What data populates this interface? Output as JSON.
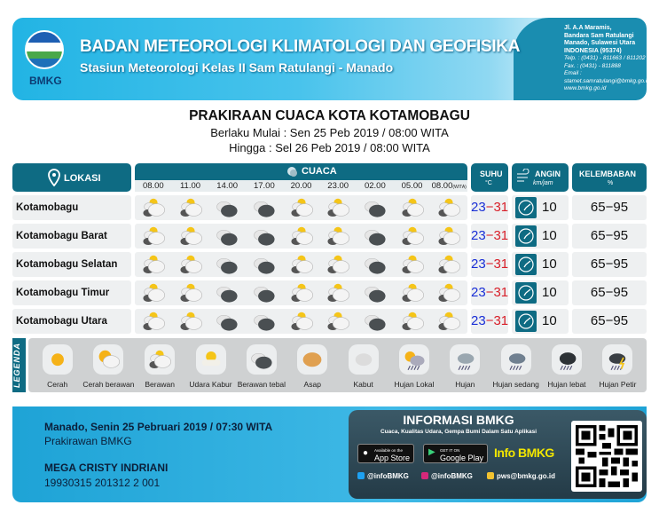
{
  "header": {
    "logo_text": "BMKG",
    "org": "BADAN METEOROLOGI KLIMATOLOGI DAN GEOFISIKA",
    "station": "Stasiun Meteorologi Kelas II Sam Ratulangi - Manado",
    "address": [
      "Jl. A.A Maramis,",
      "Bandara Sam Ratulangi",
      "Manado, Sulawesi Utara",
      "INDONESIA (95374)"
    ],
    "contact": [
      "Telp.   : (0431) - 811663 / 811202",
      "Fax.    : (0431) - 811888",
      "Email :",
      "stamet.samratulangi@bmkg.go.id",
      "www.bmkg.go.id"
    ]
  },
  "title": "PRAKIRAAN CUACA KOTA KOTAMOBAGU",
  "valid_from": "Berlaku Mulai : Sen 25 Peb 2019 / 08:00 WITA",
  "valid_to": "Hingga : Sel 26 Peb 2019 / 08:00 WITA",
  "table": {
    "headers": {
      "lokasi": "LOKASI",
      "cuaca": "CUACA",
      "suhu": "SUHU",
      "suhu_unit": "°C",
      "angin": "ANGIN",
      "angin_unit": "km/jam",
      "kelembaban": "KELEMBABAN",
      "kelembaban_unit": "%"
    },
    "times": [
      "08.00",
      "11.00",
      "14.00",
      "17.00",
      "20.00",
      "23.00",
      "02.00",
      "05.00",
      "08.00"
    ],
    "time_zone": "(WITA)",
    "rows": [
      {
        "lokasi": "Kotamobagu",
        "cuaca": [
          "berawan",
          "berawan",
          "berawan-tebal",
          "berawan-tebal",
          "berawan",
          "berawan",
          "berawan-tebal",
          "berawan",
          "berawan"
        ],
        "tmin": "23",
        "tmax": "31",
        "wind_dir_icon": "compass-icon",
        "wind": "10",
        "humidity": "65−95"
      },
      {
        "lokasi": "Kotamobagu Barat",
        "cuaca": [
          "berawan",
          "berawan",
          "berawan-tebal",
          "berawan-tebal",
          "berawan",
          "berawan",
          "berawan-tebal",
          "berawan",
          "berawan"
        ],
        "tmin": "23",
        "tmax": "31",
        "wind_dir_icon": "compass-icon",
        "wind": "10",
        "humidity": "65−95"
      },
      {
        "lokasi": "Kotamobagu Selatan",
        "cuaca": [
          "berawan",
          "berawan",
          "berawan-tebal",
          "berawan-tebal",
          "berawan",
          "berawan",
          "berawan-tebal",
          "berawan",
          "berawan"
        ],
        "tmin": "23",
        "tmax": "31",
        "wind_dir_icon": "compass-icon",
        "wind": "10",
        "humidity": "65−95"
      },
      {
        "lokasi": "Kotamobagu Timur",
        "cuaca": [
          "berawan",
          "berawan",
          "berawan-tebal",
          "berawan-tebal",
          "berawan",
          "berawan",
          "berawan-tebal",
          "berawan",
          "berawan"
        ],
        "tmin": "23",
        "tmax": "31",
        "wind_dir_icon": "compass-icon",
        "wind": "10",
        "humidity": "65−95"
      },
      {
        "lokasi": "Kotamobagu Utara",
        "cuaca": [
          "berawan",
          "berawan",
          "berawan-tebal",
          "berawan-tebal",
          "berawan",
          "berawan",
          "berawan-tebal",
          "berawan",
          "berawan"
        ],
        "tmin": "23",
        "tmax": "31",
        "wind_dir_icon": "compass-icon",
        "wind": "10",
        "humidity": "65−95"
      }
    ]
  },
  "legend": {
    "label": "LEGENDA",
    "items": [
      {
        "icon": "cerah",
        "label": "Cerah"
      },
      {
        "icon": "cerah-berawan",
        "label": "Cerah berawan"
      },
      {
        "icon": "berawan",
        "label": "Berawan"
      },
      {
        "icon": "udara-kabur",
        "label": "Udara Kabur"
      },
      {
        "icon": "berawan-tebal",
        "label": "Berawan tebal"
      },
      {
        "icon": "asap",
        "label": "Asap"
      },
      {
        "icon": "kabut",
        "label": "Kabut"
      },
      {
        "icon": "hujan-lokal",
        "label": "Hujan Lokal"
      },
      {
        "icon": "hujan",
        "label": "Hujan"
      },
      {
        "icon": "hujan-sedang",
        "label": "Hujan sedang"
      },
      {
        "icon": "hujan-lebat",
        "label": "Hujan lebat"
      },
      {
        "icon": "hujan-petir",
        "label": "Hujan Petir"
      }
    ]
  },
  "footer": {
    "issued": "Manado, Senin 25 Pebruari 2019 / 07:30 WITA",
    "role": "Prakirawan BMKG",
    "name": "MEGA CRISTY INDRIANI",
    "nip": "19930315 201312 2 001"
  },
  "info": {
    "title": "INFORMASI BMKG",
    "subtitle": "Cuaca, Kualitas Udara, Gempa Bumi Dalam Satu Aplikasi",
    "app_store_small": "Available on the",
    "app_store": "App Store",
    "google_small": "GET IT ON",
    "google": "Google Play",
    "app_name": "Info BMKG",
    "twitter": "@infoBMKG",
    "instagram": "@infoBMKG",
    "email": "pws@bmkg.go.id"
  },
  "colors": {
    "header_teal": "#0e6b83",
    "tmin": "#1a2fd6",
    "tmax": "#d8202a",
    "banner": "#22b4e4"
  }
}
